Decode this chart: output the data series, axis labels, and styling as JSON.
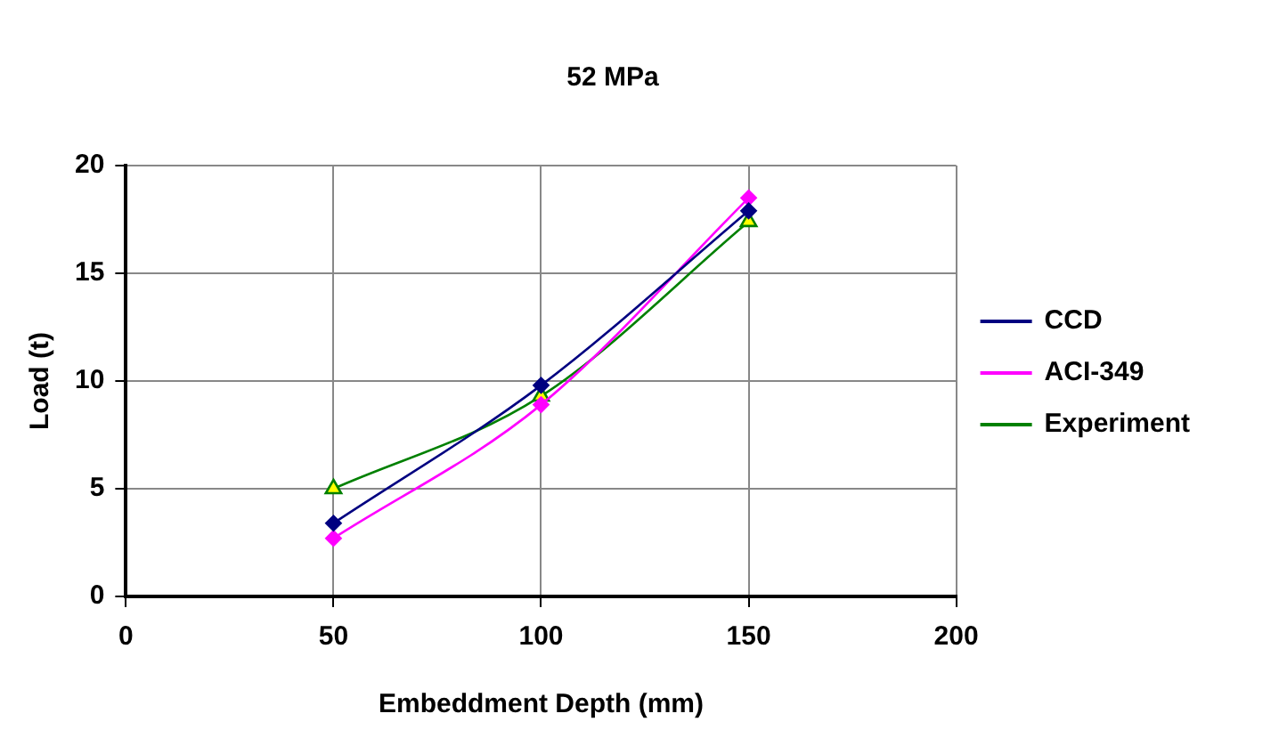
{
  "chart_data": {
    "type": "line",
    "title": "52 MPa",
    "xlabel": "Embeddment Depth (mm)",
    "ylabel": "Load (t)",
    "x": [
      50,
      100,
      150
    ],
    "series": [
      {
        "name": "CCD",
        "color": "#000080",
        "values": [
          3.4,
          9.8,
          17.9
        ],
        "marker": "diamond"
      },
      {
        "name": "ACI-349",
        "color": "#ff00ff",
        "values": [
          2.7,
          8.9,
          18.5
        ],
        "marker": "diamond"
      },
      {
        "name": "Experiment",
        "color": "#008000",
        "values": [
          5.0,
          9.3,
          17.4
        ],
        "marker": "triangle"
      }
    ],
    "xlim": [
      0,
      200
    ],
    "xticks": [
      0,
      50,
      100,
      150,
      200
    ],
    "ylim": [
      0,
      20
    ],
    "yticks": [
      0,
      5,
      10,
      15,
      20
    ],
    "grid": true,
    "legend": "right",
    "line_style": "solid"
  }
}
